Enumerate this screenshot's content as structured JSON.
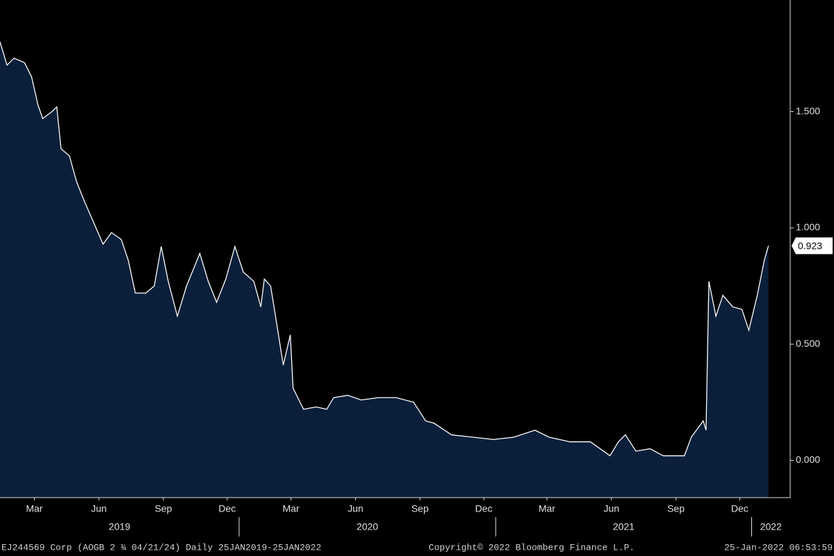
{
  "chart_data": {
    "type": "area",
    "x": [
      "2019-01-25",
      "2019-02-04",
      "2019-02-14",
      "2019-03-01",
      "2019-03-11",
      "2019-03-20",
      "2019-03-27",
      "2019-04-09",
      "2019-04-16",
      "2019-04-22",
      "2019-05-04",
      "2019-05-14",
      "2019-05-26",
      "2019-06-08",
      "2019-06-21",
      "2019-07-03",
      "2019-07-17",
      "2019-07-27",
      "2019-08-06",
      "2019-08-21",
      "2019-09-02",
      "2019-09-12",
      "2019-09-22",
      "2019-10-05",
      "2019-10-18",
      "2019-11-06",
      "2019-11-18",
      "2019-11-30",
      "2019-12-13",
      "2019-12-26",
      "2020-01-07",
      "2020-01-22",
      "2020-02-01",
      "2020-02-06",
      "2020-02-15",
      "2020-02-23",
      "2020-03-04",
      "2020-03-14",
      "2020-03-18",
      "2020-04-02",
      "2020-04-20",
      "2020-05-05",
      "2020-05-15",
      "2020-06-04",
      "2020-06-23",
      "2020-07-18",
      "2020-08-12",
      "2020-09-06",
      "2020-09-23",
      "2020-10-05",
      "2020-10-30",
      "2020-11-29",
      "2020-12-29",
      "2021-01-27",
      "2021-02-26",
      "2021-03-18",
      "2021-04-17",
      "2021-05-16",
      "2021-06-13",
      "2021-06-25",
      "2021-07-05",
      "2021-07-20",
      "2021-08-09",
      "2021-08-28",
      "2021-09-27",
      "2021-10-07",
      "2021-10-24",
      "2021-10-28",
      "2021-11-01",
      "2021-11-11",
      "2021-11-21",
      "2021-12-05",
      "2021-12-18",
      "2021-12-28",
      "2022-01-09",
      "2022-01-19",
      "2022-01-25"
    ],
    "series": [
      {
        "color": "#ffffff",
        "fill": "#0b1f3a",
        "values": [
          1.8,
          1.7,
          1.73,
          1.71,
          1.65,
          1.53,
          1.47,
          1.5,
          1.52,
          1.34,
          1.31,
          1.2,
          1.11,
          1.02,
          0.93,
          0.98,
          0.95,
          0.86,
          0.72,
          0.72,
          0.75,
          0.92,
          0.77,
          0.62,
          0.75,
          0.89,
          0.77,
          0.68,
          0.78,
          0.92,
          0.81,
          0.77,
          0.66,
          0.78,
          0.75,
          0.6,
          0.41,
          0.54,
          0.31,
          0.22,
          0.23,
          0.22,
          0.27,
          0.28,
          0.26,
          0.27,
          0.27,
          0.25,
          0.17,
          0.16,
          0.11,
          0.1,
          0.09,
          0.1,
          0.13,
          0.1,
          0.08,
          0.08,
          0.02,
          0.08,
          0.11,
          0.04,
          0.05,
          0.02,
          0.02,
          0.1,
          0.17,
          0.13,
          0.77,
          0.62,
          0.71,
          0.66,
          0.65,
          0.56,
          0.71,
          0.86,
          0.923
        ],
        "value_labels": [
          null,
          null,
          null,
          null,
          null,
          null,
          null,
          null,
          null,
          null,
          null,
          null,
          null,
          null,
          null,
          null,
          null,
          null,
          null,
          null,
          null,
          null,
          null,
          null,
          null,
          null,
          null,
          null,
          null,
          null,
          null,
          null,
          null,
          null,
          null,
          null,
          null,
          null,
          null,
          null,
          null,
          null,
          null,
          null,
          null,
          null,
          null,
          null,
          null,
          null,
          null,
          null,
          null,
          null,
          null,
          null,
          null,
          null,
          null,
          null,
          null,
          null,
          null,
          null,
          null,
          null,
          null,
          null,
          null,
          null,
          null,
          null,
          null,
          null,
          null,
          null,
          "0.923"
        ]
      }
    ],
    "xlim": [
      "2019-01-25",
      "2022-02-25"
    ],
    "xticks": [
      {
        "value": "2019-03-15",
        "label": "Mar"
      },
      {
        "value": "2019-06-15",
        "label": "Jun"
      },
      {
        "value": "2019-09-15",
        "label": "Sep"
      },
      {
        "value": "2019-12-15",
        "label": "Dec"
      },
      {
        "value": "2020-03-15",
        "label": "Mar"
      },
      {
        "value": "2020-06-15",
        "label": "Jun"
      },
      {
        "value": "2020-09-15",
        "label": "Sep"
      },
      {
        "value": "2020-12-15",
        "label": "Dec"
      },
      {
        "value": "2021-03-15",
        "label": "Mar"
      },
      {
        "value": "2021-06-15",
        "label": "Jun"
      },
      {
        "value": "2021-09-15",
        "label": "Sep"
      },
      {
        "value": "2021-12-15",
        "label": "Dec"
      }
    ],
    "year_ticks": [
      {
        "value": "2019-01-01",
        "label": "2019"
      },
      {
        "value": "2020-01-01",
        "label": "2020"
      },
      {
        "value": "2021-01-01",
        "label": "2021"
      },
      {
        "value": "2022-01-01",
        "label": "2022"
      }
    ],
    "ylim": [
      -0.16,
      1.98
    ],
    "yticks": [
      {
        "value": 0,
        "label": "0.000"
      },
      {
        "value": 0.5,
        "label": "0.500"
      },
      {
        "value": 1,
        "label": "1.000"
      },
      {
        "value": 1.5,
        "label": "1.500"
      }
    ],
    "footer": {
      "left": "EJ244569 Corp (AOGB 2 ¾ 04/21/24)  Daily 25JAN2019-25JAN2022",
      "center": "Copyright© 2022 Bloomberg Finance L.P.",
      "right": "25-Jan-2022 06:53:59"
    }
  }
}
